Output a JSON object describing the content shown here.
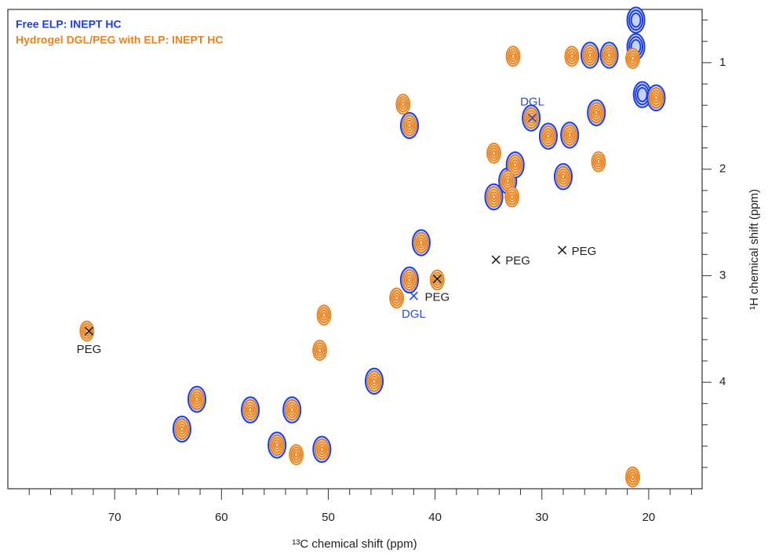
{
  "chart_data": {
    "type": "scatter",
    "x_label": "¹³C chemical shift (ppm)",
    "y_label": "¹H chemical shift (ppm)",
    "xlim": [
      80,
      15
    ],
    "ylim": [
      5,
      0.5
    ],
    "xticks": [
      70,
      60,
      50,
      40,
      30,
      20
    ],
    "yticks": [
      1,
      2,
      3,
      4
    ],
    "x_minor_ticks": [
      78,
      76,
      74,
      72,
      68,
      66,
      64,
      62,
      58,
      56,
      54,
      52,
      48,
      46,
      44,
      42,
      38,
      36,
      34,
      32,
      28,
      26,
      24,
      22,
      18,
      16
    ],
    "y_minor_ticks": [
      0.6,
      0.8,
      1.2,
      1.4,
      1.6,
      1.8,
      2.2,
      2.4,
      2.6,
      2.8,
      3.2,
      3.4,
      3.6,
      3.8,
      4.2,
      4.4,
      4.6,
      4.8
    ],
    "legend": "top-left",
    "series": [
      {
        "name": "Free ELP: INEPT HC",
        "color": "#1f3fe0",
        "x": [
          62.3,
          63.7,
          57.3,
          53.4,
          54.8,
          50.6,
          45.7,
          42.4,
          41.3,
          42.4,
          33.2,
          32.5,
          34.5,
          31.0,
          29.4,
          27.4,
          28.0,
          24.9,
          25.5,
          23.7,
          21.2,
          21.2,
          20.6,
          19.3
        ],
        "y": [
          4.16,
          4.44,
          4.26,
          4.26,
          4.59,
          4.63,
          3.99,
          3.04,
          2.69,
          1.59,
          2.11,
          1.96,
          2.26,
          1.52,
          1.69,
          1.68,
          2.07,
          1.47,
          0.93,
          0.93,
          0.6,
          0.85,
          1.3,
          1.33
        ]
      },
      {
        "name": "Hydrogel DGL/PEG with ELP: INEPT HC",
        "color": "#e8821e",
        "x": [
          72.6,
          62.3,
          63.7,
          57.3,
          53.4,
          54.8,
          53.0,
          50.6,
          50.8,
          50.4,
          45.7,
          43.6,
          42.4,
          41.3,
          42.4,
          43.0,
          39.8,
          34.5,
          33.2,
          32.5,
          32.8,
          34.5,
          31.0,
          29.4,
          27.4,
          28.0,
          24.9,
          24.7,
          25.5,
          23.7,
          21.5,
          19.3,
          32.7,
          27.2,
          21.5
        ],
        "y": [
          3.52,
          4.16,
          4.44,
          4.26,
          4.26,
          4.59,
          4.68,
          4.63,
          3.7,
          3.37,
          3.99,
          3.21,
          3.04,
          2.69,
          1.59,
          1.39,
          3.04,
          1.85,
          2.11,
          1.96,
          2.26,
          2.26,
          1.52,
          1.69,
          1.68,
          2.07,
          1.47,
          1.93,
          0.93,
          0.93,
          0.96,
          1.33,
          0.94,
          0.94,
          4.89
        ]
      }
    ],
    "annotations": [
      {
        "text": "PEG",
        "x": 72.4,
        "y": 3.52,
        "position": "below",
        "color": "#222"
      },
      {
        "text": "PEG",
        "x": 34.3,
        "y": 2.85,
        "position": "right",
        "color": "#222"
      },
      {
        "text": "PEG",
        "x": 39.8,
        "y": 3.03,
        "position": "below",
        "color": "#222"
      },
      {
        "text": "PEG",
        "x": 28.1,
        "y": 2.76,
        "position": "right",
        "color": "#222"
      },
      {
        "text": "DGL",
        "x": 30.9,
        "y": 1.52,
        "position": "above",
        "color": "#2a4bd8"
      },
      {
        "text": "DGL",
        "x": 42.0,
        "y": 3.19,
        "position": "below",
        "color": "#2a4bd8"
      }
    ]
  }
}
